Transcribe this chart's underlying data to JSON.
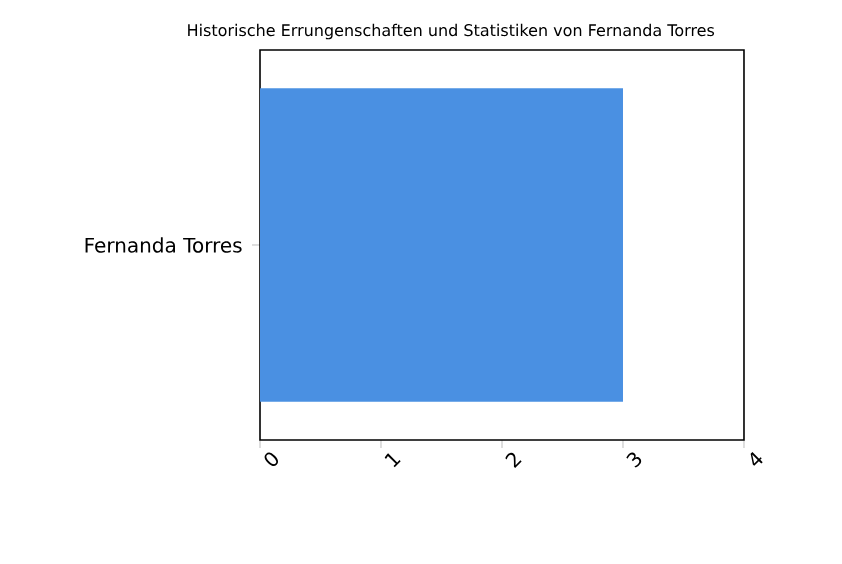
{
  "chart_data": {
    "type": "bar",
    "orientation": "horizontal",
    "title": "Historische Errungenschaften und Statistiken von Fernanda Torres",
    "categories": [
      "Fernanda Torres"
    ],
    "values": [
      3
    ],
    "color": "#4a90e2",
    "xlim": [
      0,
      4
    ],
    "xticks": [
      0,
      1,
      2,
      3,
      4
    ]
  }
}
